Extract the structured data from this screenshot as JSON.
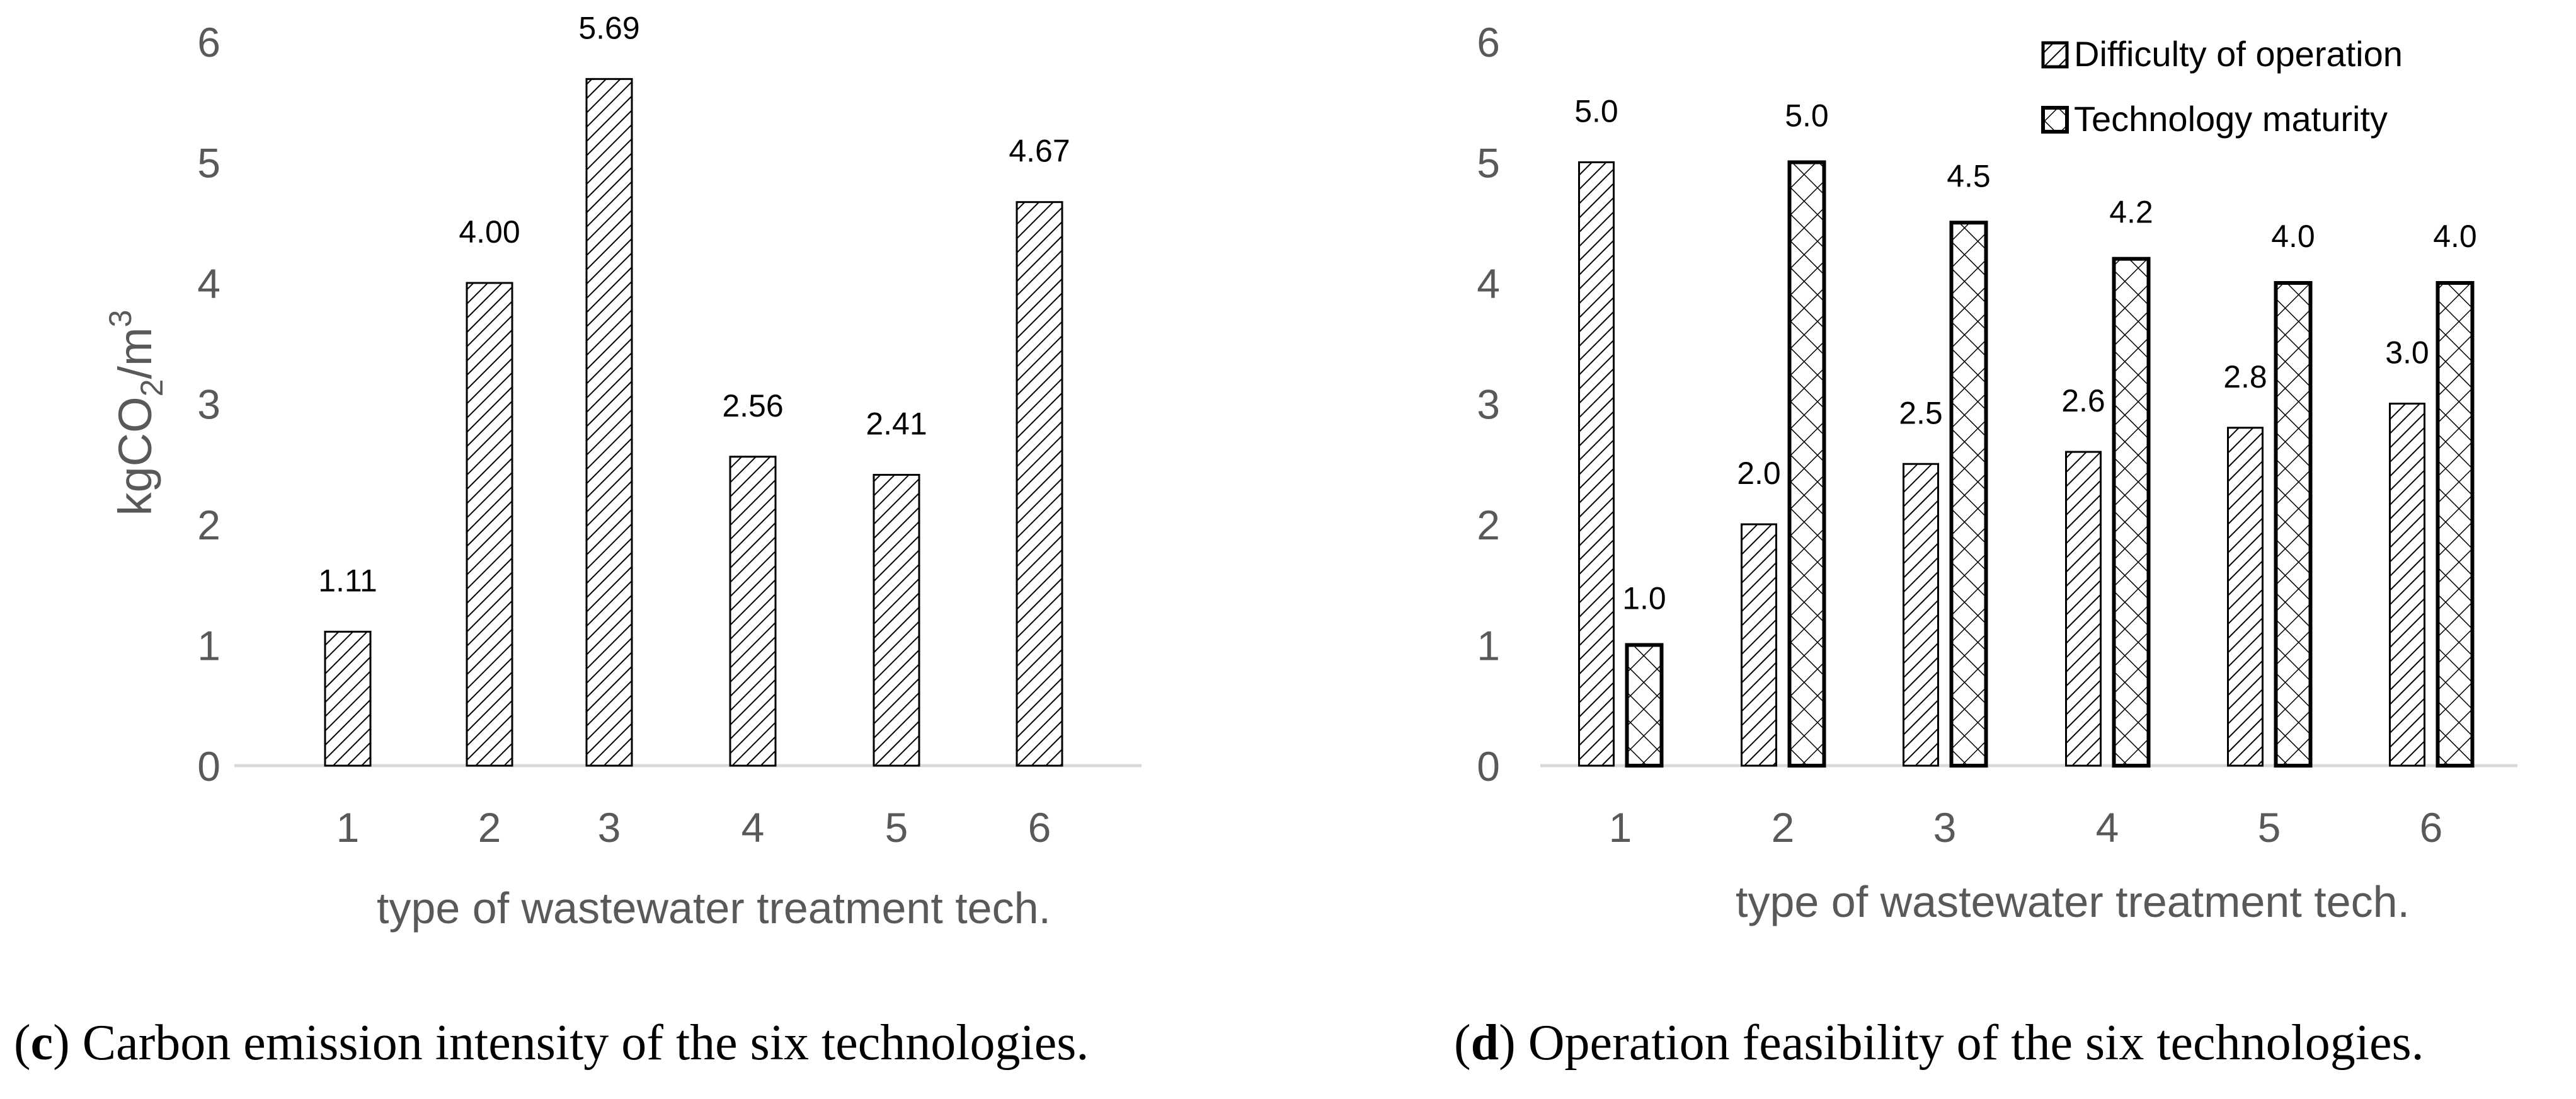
{
  "chart_data": [
    {
      "type": "bar",
      "categories": [
        "1",
        "2",
        "3",
        "4",
        "5",
        "6"
      ],
      "series": [
        {
          "values": [
            1.11,
            4.0,
            5.69,
            2.56,
            2.41,
            4.67
          ],
          "labels": [
            "1.11",
            "4.00",
            "5.69",
            "2.56",
            "2.41",
            "4.67"
          ]
        }
      ],
      "ylim": [
        0,
        6
      ],
      "yticks": [
        "0",
        "1",
        "2",
        "3",
        "4",
        "5",
        "6"
      ],
      "ylabel": "kgCO",
      "ylabel_sub": "2",
      "ylabel_tail": "/m",
      "ylabel_sup": "3",
      "xlabel": "type of wastewater treatment tech.",
      "grid": false,
      "caption_letter": "c",
      "caption_text": "Carbon emission intensity of the six technologies."
    },
    {
      "type": "bar",
      "categories": [
        "1",
        "2",
        "3",
        "4",
        "5",
        "6"
      ],
      "series": [
        {
          "name": "Difficulty of operation",
          "values": [
            5.0,
            2.0,
            2.5,
            2.6,
            2.8,
            3.0
          ],
          "labels": [
            "5.0",
            "2.0",
            "2.5",
            "2.6",
            "2.8",
            "3.0"
          ]
        },
        {
          "name": "Technology maturity",
          "values": [
            1.0,
            5.0,
            4.5,
            4.2,
            4.0,
            4.0
          ],
          "labels": [
            "1.0",
            "5.0",
            "4.5",
            "4.2",
            "4.0",
            "4.0"
          ]
        }
      ],
      "ylim": [
        0,
        6
      ],
      "yticks": [
        "0",
        "1",
        "2",
        "3",
        "4",
        "5",
        "6"
      ],
      "xlabel": "type of wastewater treatment tech.",
      "legend": "top-right",
      "grid": false,
      "caption_letter": "d",
      "caption_text": "Operation feasibility of the six technologies."
    }
  ]
}
